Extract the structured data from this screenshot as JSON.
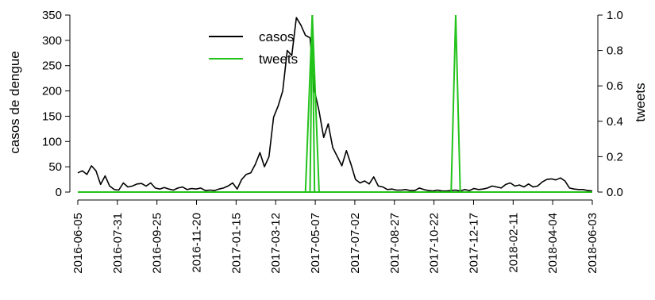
{
  "chart_data": {
    "type": "line",
    "title": "",
    "xlabel": "",
    "ylabel": "casos de dengue",
    "y2label": "tweets",
    "ylim": [
      0,
      350
    ],
    "y2lim": [
      0,
      1.0
    ],
    "grid": false,
    "legend_position": "top-center",
    "x_tick_labels": [
      "2016-06-05",
      "2016-07-31",
      "2016-09-25",
      "2016-11-20",
      "2017-01-15",
      "2017-03-12",
      "2017-05-07",
      "2017-07-02",
      "2017-08-27",
      "2017-10-22",
      "2017-12-17",
      "2018-02-11",
      "2018-04-04",
      "2018-06-03"
    ],
    "y_tick_labels": [
      "0",
      "50",
      "100",
      "150",
      "200",
      "250",
      "300",
      "350"
    ],
    "y2_tick_labels": [
      "0.0",
      "0.2",
      "0.4",
      "0.6",
      "0.8",
      "1.0"
    ],
    "series": [
      {
        "name": "casos",
        "axis": "left",
        "color": "#000000",
        "values": [
          38,
          42,
          35,
          52,
          42,
          15,
          32,
          12,
          5,
          4,
          18,
          10,
          12,
          16,
          17,
          12,
          18,
          8,
          6,
          9,
          6,
          4,
          8,
          10,
          5,
          7,
          6,
          8,
          3,
          4,
          3,
          6,
          8,
          12,
          18,
          6,
          25,
          35,
          38,
          55,
          78,
          50,
          70,
          148,
          170,
          200,
          280,
          270,
          345,
          330,
          310,
          305,
          200,
          160,
          108,
          135,
          88,
          70,
          52,
          82,
          55,
          25,
          18,
          22,
          16,
          30,
          12,
          10,
          5,
          6,
          4,
          4,
          5,
          3,
          3,
          8,
          5,
          3,
          2,
          4,
          2,
          2,
          3,
          4,
          2,
          5,
          3,
          7,
          5,
          6,
          8,
          12,
          10,
          8,
          15,
          18,
          12,
          14,
          10,
          16,
          10,
          12,
          20,
          25,
          26,
          24,
          28,
          22,
          8,
          6,
          5,
          5,
          3,
          2
        ]
      },
      {
        "name": "tweets",
        "axis": "right",
        "color": "#22c31a",
        "spikes": [
          {
            "from_week": 50,
            "to_week": 53,
            "value": 1.0
          },
          {
            "from_week": 51,
            "to_week": 52,
            "value": 1.0
          },
          {
            "from_week": 82,
            "to_week": 84,
            "value": 1.0
          }
        ],
        "baseline": 0.0
      }
    ]
  }
}
